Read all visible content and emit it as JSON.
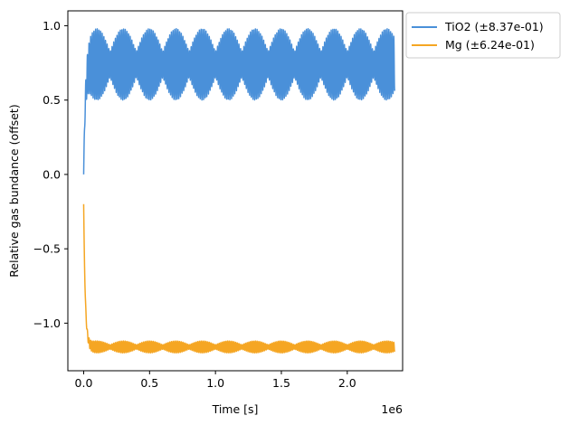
{
  "chart_data": {
    "type": "line",
    "title": "",
    "xlabel": "Time [s]",
    "ylabel": "Relative gas bundance (offset)",
    "x_offset_text": "1e6",
    "xlim": [
      -0.12,
      2.42
    ],
    "ylim": [
      -1.32,
      1.1
    ],
    "x_ticks": [
      0.0,
      0.5,
      1.0,
      1.5,
      2.0
    ],
    "x_tick_labels": [
      "0.0",
      "0.5",
      "1.0",
      "1.5",
      "2.0"
    ],
    "y_ticks": [
      1.0,
      0.5,
      0.0,
      -0.5,
      -1.0
    ],
    "y_tick_labels": [
      "1.0",
      "0.5",
      "0.0",
      "−0.5",
      "−1.0"
    ],
    "grid": false,
    "legend_position": "outside-top-right",
    "series": [
      {
        "name": "TiO2 (±8.37e-01)",
        "color": "#4a90d9",
        "x_start": 0.0,
        "x_end": 2.36,
        "start_value": 0.0,
        "baseline": 0.66,
        "envelope_min": 0.5,
        "envelope_max": 0.98,
        "beat_period": 0.2
      },
      {
        "name": "Mg (±6.24e-01)",
        "color": "#f5a623",
        "x_start": 0.0,
        "x_end": 2.36,
        "start_value": -0.2,
        "baseline": -1.16,
        "envelope_min": -1.2,
        "envelope_max": -1.12,
        "beat_period": 0.2
      }
    ]
  }
}
